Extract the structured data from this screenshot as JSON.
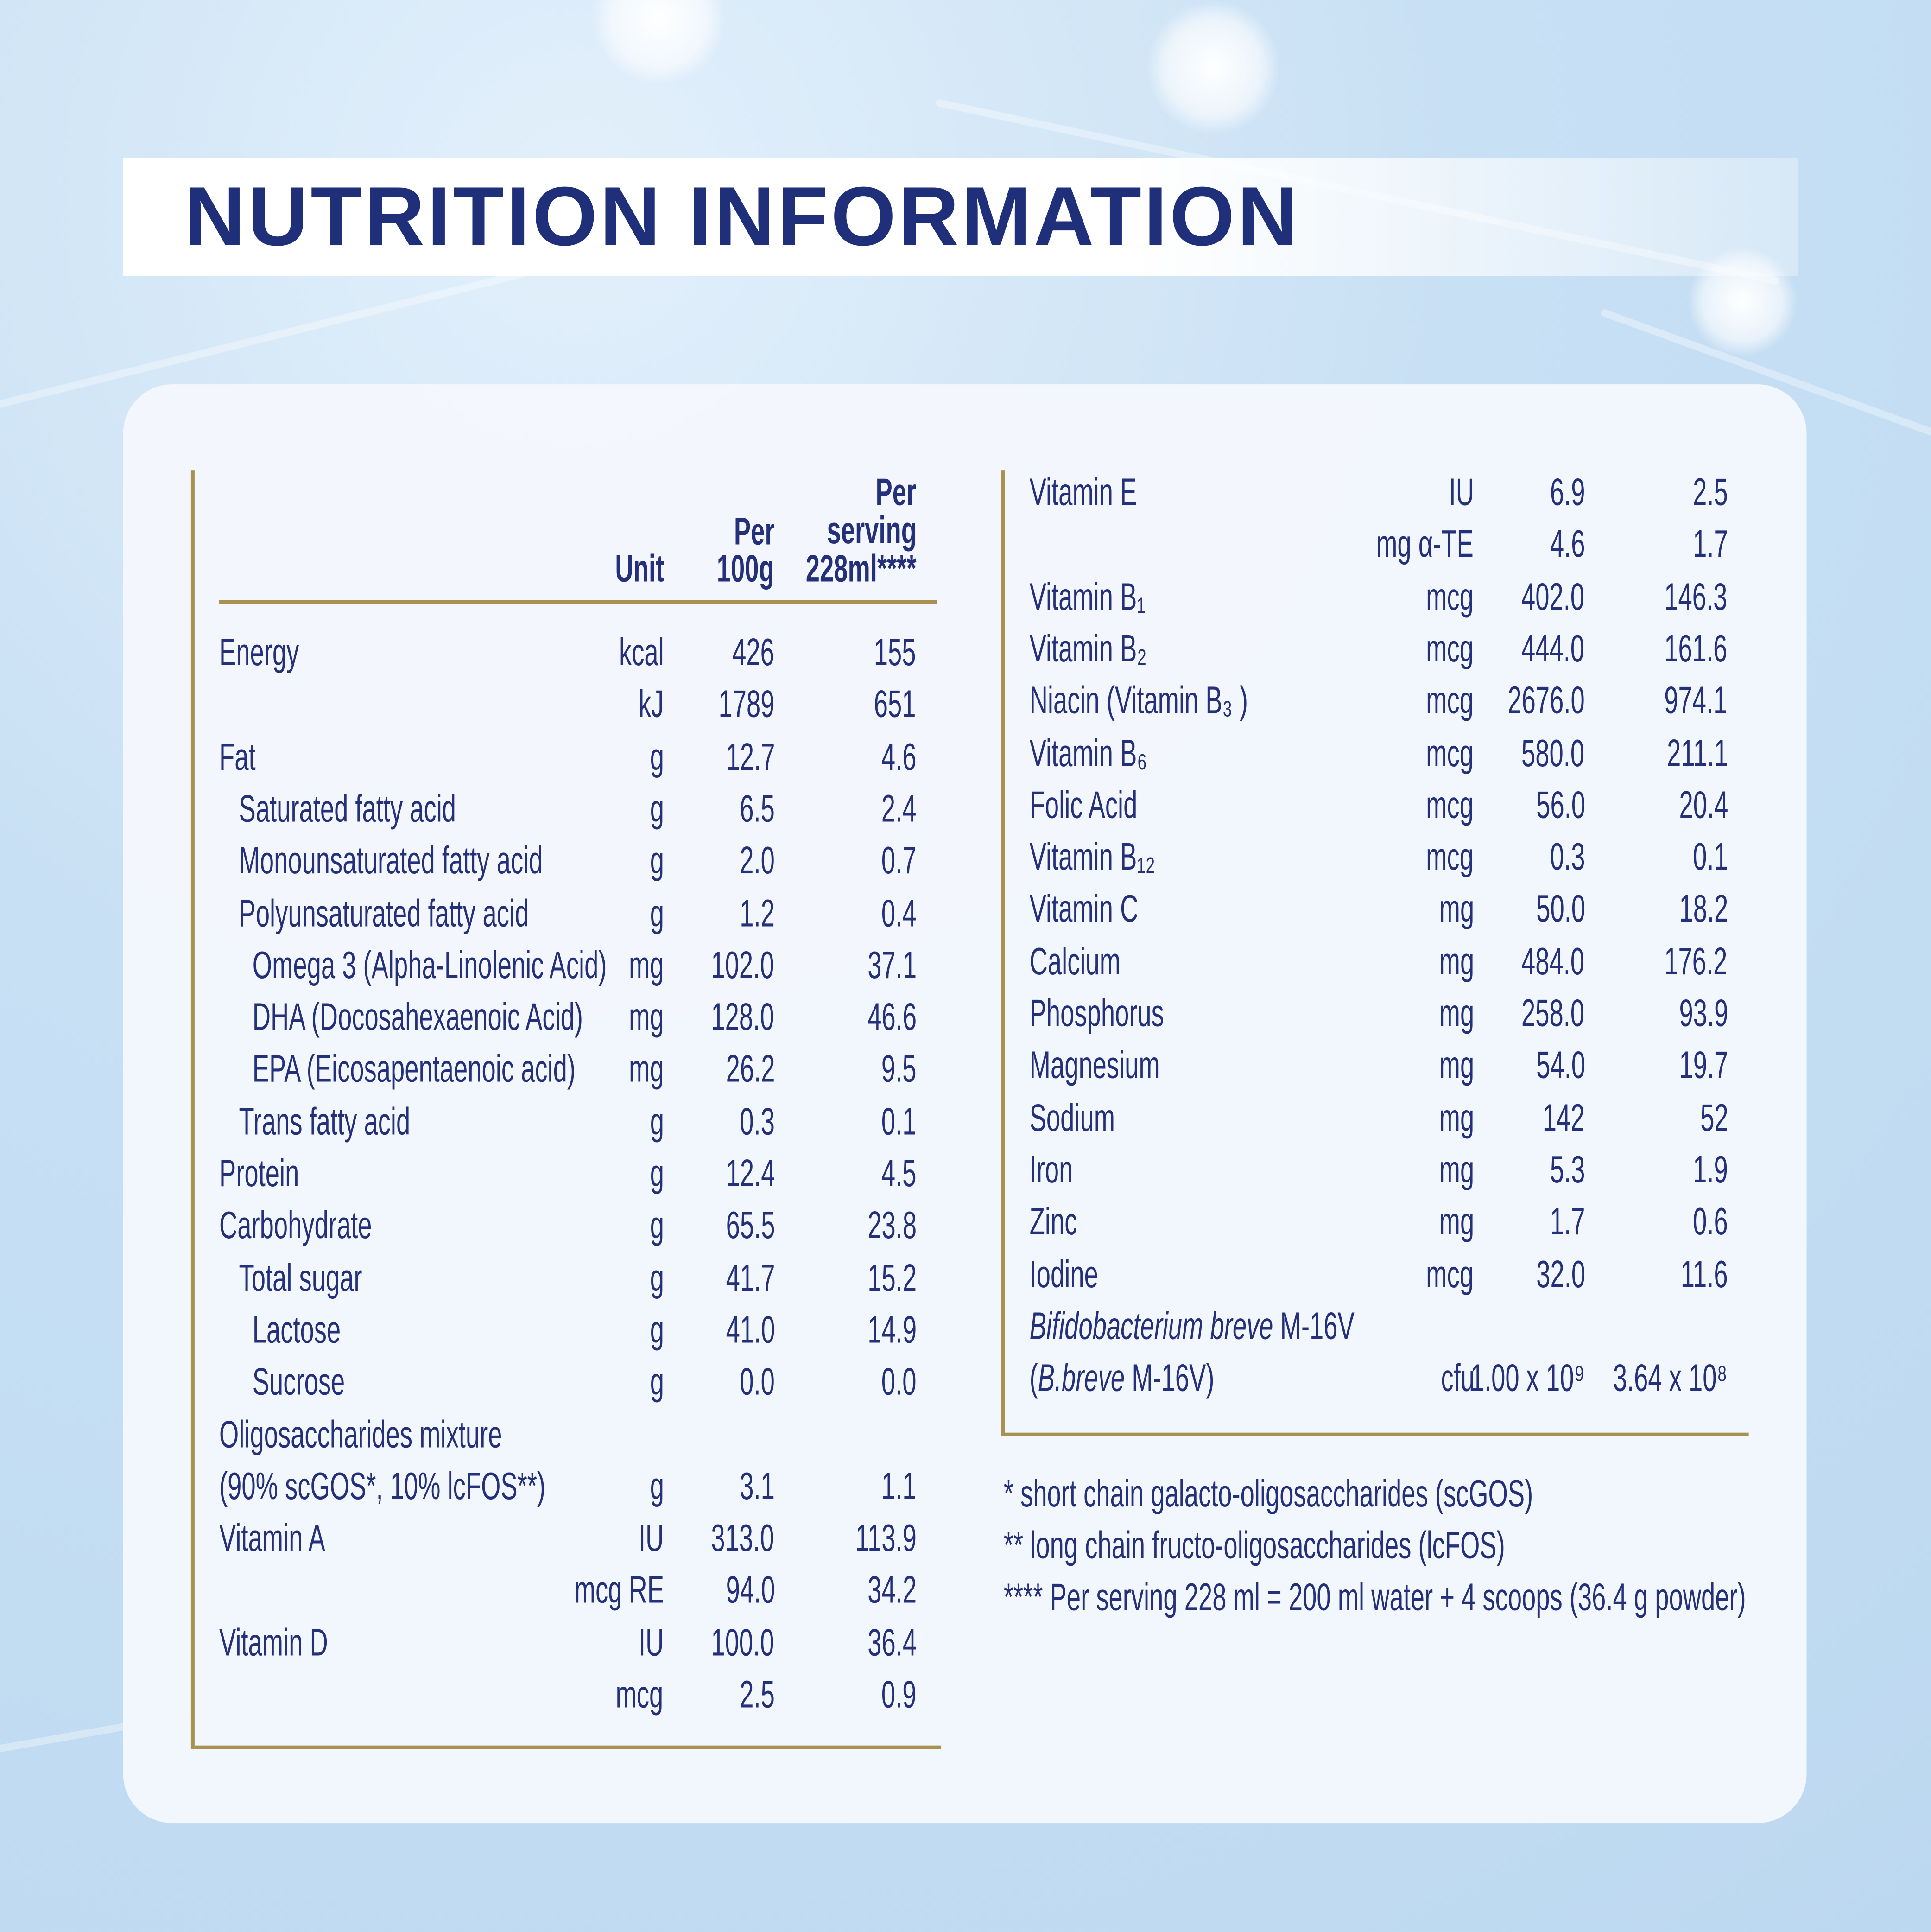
{
  "title": "NUTRITION INFORMATION",
  "colors": {
    "heading": "#1f2f7a",
    "text": "#25307a",
    "rule": "#a8924f",
    "background": "#c6def3"
  },
  "left_table": {
    "headers": {
      "unit": "Unit",
      "per100": [
        "Per",
        "100g"
      ],
      "serving": [
        "Per",
        "serving",
        "228ml****"
      ]
    },
    "rows": [
      {
        "label": "Energy",
        "indent": 0,
        "unit": "kcal",
        "per100": "426",
        "serving": "155"
      },
      {
        "label": "",
        "indent": 0,
        "unit": "kJ",
        "per100": "1789",
        "serving": "651"
      },
      {
        "label": "Fat",
        "indent": 0,
        "unit": "g",
        "per100": "12.7",
        "serving": "4.6"
      },
      {
        "label": "Saturated fatty acid",
        "indent": 1,
        "unit": "g",
        "per100": "6.5",
        "serving": "2.4"
      },
      {
        "label": "Monounsaturated fatty acid",
        "indent": 1,
        "unit": "g",
        "per100": "2.0",
        "serving": "0.7"
      },
      {
        "label": "Polyunsaturated fatty acid",
        "indent": 1,
        "unit": "g",
        "per100": "1.2",
        "serving": "0.4"
      },
      {
        "label": "Omega 3 (Alpha-Linolenic Acid)",
        "indent": 2,
        "unit": "mg",
        "per100": "102.0",
        "serving": "37.1"
      },
      {
        "label": "DHA (Docosahexaenoic Acid)",
        "indent": 2,
        "unit": "mg",
        "per100": "128.0",
        "serving": "46.6"
      },
      {
        "label": "EPA (Eicosapentaenoic acid)",
        "indent": 2,
        "unit": "mg",
        "per100": "26.2",
        "serving": "9.5"
      },
      {
        "label": "Trans fatty acid",
        "indent": 1,
        "unit": "g",
        "per100": "0.3",
        "serving": "0.1"
      },
      {
        "label": "Protein",
        "indent": 0,
        "unit": "g",
        "per100": "12.4",
        "serving": "4.5"
      },
      {
        "label": "Carbohydrate",
        "indent": 0,
        "unit": "g",
        "per100": "65.5",
        "serving": "23.8"
      },
      {
        "label": "Total sugar",
        "indent": 1,
        "unit": "g",
        "per100": "41.7",
        "serving": "15.2"
      },
      {
        "label": "Lactose",
        "indent": 2,
        "unit": "g",
        "per100": "41.0",
        "serving": "14.9"
      },
      {
        "label": "Sucrose",
        "indent": 2,
        "unit": "g",
        "per100": "0.0",
        "serving": "0.0"
      },
      {
        "label": "Oligosaccharides mixture",
        "indent": 0,
        "unit": "",
        "per100": "",
        "serving": ""
      },
      {
        "label": "(90% scGOS*, 10% lcFOS**)",
        "indent": 0,
        "unit": "g",
        "per100": "3.1",
        "serving": "1.1"
      },
      {
        "label": "Vitamin A",
        "indent": 0,
        "unit": "IU",
        "per100": "313.0",
        "serving": "113.9"
      },
      {
        "label": "",
        "indent": 0,
        "unit": "mcg RE",
        "per100": "94.0",
        "serving": "34.2"
      },
      {
        "label": "Vitamin D",
        "indent": 0,
        "unit": "IU",
        "per100": "100.0",
        "serving": "36.4"
      },
      {
        "label": "",
        "indent": 0,
        "unit": "mcg",
        "per100": "2.5",
        "serving": "0.9"
      }
    ]
  },
  "right_table": {
    "rows": [
      {
        "label": "Vitamin E",
        "unit": "IU",
        "per100": "6.9",
        "serving": "2.5"
      },
      {
        "label": "",
        "unit": "mg α-TE",
        "per100": "4.6",
        "serving": "1.7"
      },
      {
        "label": "Vitamin B₁",
        "unit": "mcg",
        "per100": "402.0",
        "serving": "146.3"
      },
      {
        "label": "Vitamin B₂",
        "unit": "mcg",
        "per100": "444.0",
        "serving": "161.6"
      },
      {
        "label": "Niacin (Vitamin B₃ )",
        "unit": "mcg",
        "per100": "2676.0",
        "serving": "974.1"
      },
      {
        "label": "Vitamin B₆",
        "unit": "mcg",
        "per100": "580.0",
        "serving": "211.1"
      },
      {
        "label": "Folic Acid",
        "unit": "mcg",
        "per100": "56.0",
        "serving": "20.4"
      },
      {
        "label": "Vitamin B₁₂",
        "unit": "mcg",
        "per100": "0.3",
        "serving": "0.1"
      },
      {
        "label": "Vitamin C",
        "unit": "mg",
        "per100": "50.0",
        "serving": "18.2"
      },
      {
        "label": "Calcium",
        "unit": "mg",
        "per100": "484.0",
        "serving": "176.2"
      },
      {
        "label": "Phosphorus",
        "unit": "mg",
        "per100": "258.0",
        "serving": "93.9"
      },
      {
        "label": "Magnesium",
        "unit": "mg",
        "per100": "54.0",
        "serving": "19.7"
      },
      {
        "label": "Sodium",
        "unit": "mg",
        "per100": "142",
        "serving": "52"
      },
      {
        "label": "Iron",
        "unit": "mg",
        "per100": "5.3",
        "serving": "1.9"
      },
      {
        "label": "Zinc",
        "unit": "mg",
        "per100": "1.7",
        "serving": "0.6"
      },
      {
        "label": "Iodine",
        "unit": "mcg",
        "per100": "32.0",
        "serving": "11.6"
      },
      {
        "label_italic": "Bifidobacterium breve",
        "label": " M-16V",
        "unit": "",
        "per100": "",
        "serving": ""
      },
      {
        "label_pre": "(",
        "label_italic": "B.breve",
        "label": " M-16V)",
        "unit": "cfu",
        "per100": "1.00 x 10⁹",
        "serving": "3.64 x 10⁸"
      }
    ]
  },
  "footnotes": [
    "* short chain galacto-oligosaccharides (scGOS)",
    "** long chain fructo-oligosaccharides (lcFOS)",
    "**** Per serving 228 ml = 200 ml water + 4 scoops (36.4 g powder)"
  ]
}
